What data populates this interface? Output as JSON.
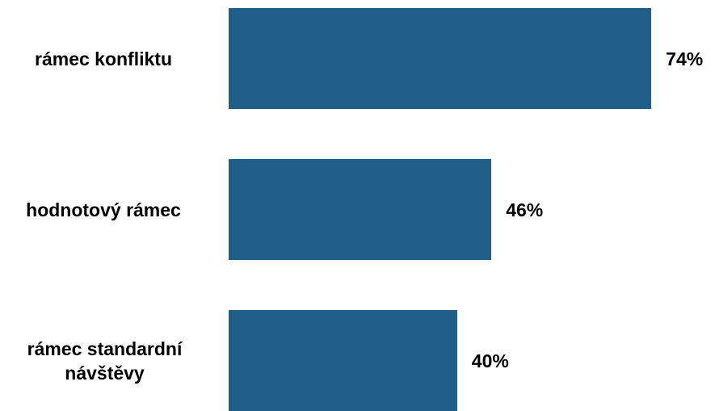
{
  "chart_data": {
    "type": "bar",
    "orientation": "horizontal",
    "categories": [
      "rámec konfliktu",
      "hodnotový rámec",
      "rámec standardní návštěvy"
    ],
    "values": [
      74,
      46,
      40
    ],
    "value_labels": [
      "74%",
      "46%",
      "40%"
    ],
    "unit": "%",
    "xlim": [
      0,
      100
    ],
    "grid": false,
    "legend": "none",
    "bar_color": "#225F88"
  }
}
